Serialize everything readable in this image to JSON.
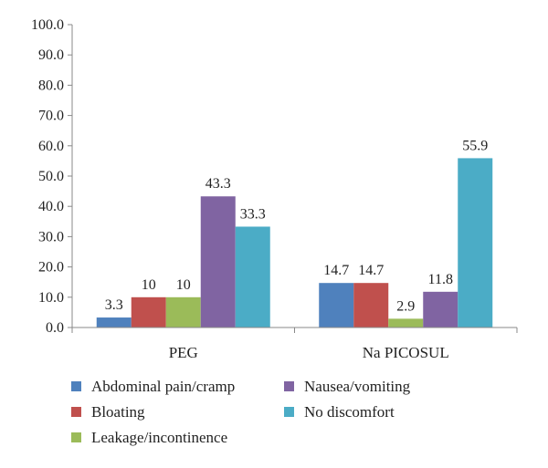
{
  "chart_data": {
    "type": "bar",
    "categories": [
      "PEG",
      "Na PICOSUL"
    ],
    "series": [
      {
        "name": "Abdominal pain/cramp",
        "values": [
          3.3,
          14.7
        ],
        "labels": [
          "3.3",
          "14.7"
        ],
        "color": "#4f81bd"
      },
      {
        "name": "Bloating",
        "values": [
          10,
          14.7
        ],
        "labels": [
          "10",
          "14.7"
        ],
        "color": "#c0504d"
      },
      {
        "name": "Leakage/incontinence",
        "values": [
          10,
          2.9
        ],
        "labels": [
          "10",
          "2.9"
        ],
        "color": "#9bbb59"
      },
      {
        "name": "Nausea/vomiting",
        "values": [
          43.3,
          11.8
        ],
        "labels": [
          "43.3",
          "11.8"
        ],
        "color": "#8064a2"
      },
      {
        "name": "No discomfort",
        "values": [
          33.3,
          55.9
        ],
        "labels": [
          "33.3",
          "55.9"
        ],
        "color": "#4bacc6"
      }
    ],
    "ylim": [
      0,
      100
    ],
    "yticks": [
      "0.0",
      "10.0",
      "20.0",
      "30.0",
      "40.0",
      "50.0",
      "60.0",
      "70.0",
      "80.0",
      "90.0",
      "100.0"
    ],
    "title": "",
    "xlabel": "",
    "ylabel": "",
    "grid": false,
    "legend_position": "bottom"
  }
}
